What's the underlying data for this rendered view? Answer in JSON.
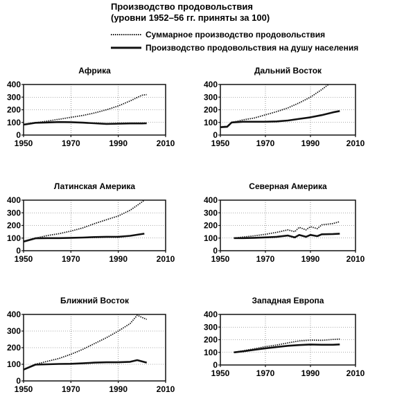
{
  "header": {
    "title_line1": "Производство продовольствия",
    "title_line2": "(уровни 1952–56 гг. приняты за 100)"
  },
  "legend": {
    "placement": "top-right",
    "items": [
      {
        "label": "Суммарное производство продовольствия",
        "style": "dotted"
      },
      {
        "label": "Производство продовольствия на душу населения",
        "style": "solid"
      }
    ]
  },
  "chart_data": [
    {
      "type": "line",
      "title": "Африка",
      "xlim": [
        1950,
        2010
      ],
      "ylim": [
        0,
        400
      ],
      "xticks": [
        1950,
        1970,
        1990,
        2010
      ],
      "yticks": [
        0,
        100,
        200,
        300,
        400
      ],
      "grid": true,
      "series": [
        {
          "label_ref": 0,
          "points": [
            [
              1950,
              85
            ],
            [
              1955,
              97
            ],
            [
              1960,
              110
            ],
            [
              1965,
              125
            ],
            [
              1970,
              140
            ],
            [
              1975,
              155
            ],
            [
              1980,
              175
            ],
            [
              1985,
              200
            ],
            [
              1990,
              230
            ],
            [
              1995,
              270
            ],
            [
              2000,
              315
            ],
            [
              2002,
              320
            ]
          ]
        },
        {
          "label_ref": 1,
          "points": [
            [
              1950,
              82
            ],
            [
              1955,
              97
            ],
            [
              1960,
              100
            ],
            [
              1965,
              103
            ],
            [
              1970,
              102
            ],
            [
              1975,
              98
            ],
            [
              1980,
              93
            ],
            [
              1985,
              88
            ],
            [
              1990,
              90
            ],
            [
              1995,
              92
            ],
            [
              2000,
              92
            ],
            [
              2002,
              93
            ]
          ]
        }
      ]
    },
    {
      "type": "line",
      "title": "Дальний Восток",
      "xlim": [
        1950,
        2010
      ],
      "ylim": [
        0,
        400
      ],
      "xticks": [
        1950,
        1970,
        1990,
        2010
      ],
      "yticks": [
        0,
        100,
        200,
        300,
        400
      ],
      "grid": true,
      "series": [
        {
          "label_ref": 0,
          "points": [
            [
              1950,
              65
            ],
            [
              1953,
              70
            ],
            [
              1955,
              100
            ],
            [
              1960,
              120
            ],
            [
              1965,
              135
            ],
            [
              1970,
              160
            ],
            [
              1975,
              185
            ],
            [
              1980,
              215
            ],
            [
              1985,
              255
            ],
            [
              1990,
              300
            ],
            [
              1995,
              360
            ],
            [
              1998,
              400
            ]
          ]
        },
        {
          "label_ref": 1,
          "points": [
            [
              1950,
              62
            ],
            [
              1953,
              65
            ],
            [
              1955,
              100
            ],
            [
              1960,
              105
            ],
            [
              1965,
              105
            ],
            [
              1970,
              105
            ],
            [
              1975,
              108
            ],
            [
              1980,
              115
            ],
            [
              1985,
              128
            ],
            [
              1990,
              140
            ],
            [
              1995,
              158
            ],
            [
              2000,
              180
            ],
            [
              2003,
              190
            ]
          ]
        }
      ]
    },
    {
      "type": "line",
      "title": "Латинская Америка",
      "xlim": [
        1950,
        2010
      ],
      "ylim": [
        0,
        400
      ],
      "xticks": [
        1950,
        1970,
        1990,
        2010
      ],
      "yticks": [
        0,
        100,
        200,
        300,
        400
      ],
      "grid": true,
      "series": [
        {
          "label_ref": 0,
          "points": [
            [
              1950,
              75
            ],
            [
              1955,
              100
            ],
            [
              1960,
              120
            ],
            [
              1965,
              135
            ],
            [
              1970,
              155
            ],
            [
              1975,
              180
            ],
            [
              1980,
              215
            ],
            [
              1985,
              245
            ],
            [
              1990,
              275
            ],
            [
              1995,
              320
            ],
            [
              2000,
              385
            ],
            [
              2001,
              400
            ]
          ]
        },
        {
          "label_ref": 1,
          "points": [
            [
              1950,
              72
            ],
            [
              1955,
              98
            ],
            [
              1960,
              100
            ],
            [
              1965,
              100
            ],
            [
              1970,
              102
            ],
            [
              1975,
              104
            ],
            [
              1980,
              108
            ],
            [
              1985,
              110
            ],
            [
              1990,
              110
            ],
            [
              1995,
              118
            ],
            [
              2000,
              132
            ],
            [
              2001,
              135
            ]
          ]
        }
      ]
    },
    {
      "type": "line",
      "title": "Северная Америка",
      "xlim": [
        1950,
        2010
      ],
      "ylim": [
        0,
        400
      ],
      "xticks": [
        1950,
        1970,
        1990,
        2010
      ],
      "yticks": [
        0,
        100,
        200,
        300,
        400
      ],
      "grid": true,
      "series": [
        {
          "label_ref": 0,
          "points": [
            [
              1956,
              100
            ],
            [
              1960,
              108
            ],
            [
              1965,
              118
            ],
            [
              1970,
              130
            ],
            [
              1975,
              145
            ],
            [
              1980,
              165
            ],
            [
              1983,
              150
            ],
            [
              1985,
              185
            ],
            [
              1988,
              165
            ],
            [
              1990,
              190
            ],
            [
              1993,
              175
            ],
            [
              1995,
              205
            ],
            [
              2000,
              215
            ],
            [
              2003,
              230
            ]
          ]
        },
        {
          "label_ref": 1,
          "points": [
            [
              1956,
              100
            ],
            [
              1960,
              100
            ],
            [
              1965,
              102
            ],
            [
              1970,
              105
            ],
            [
              1975,
              110
            ],
            [
              1980,
              120
            ],
            [
              1983,
              105
            ],
            [
              1985,
              125
            ],
            [
              1988,
              110
            ],
            [
              1990,
              125
            ],
            [
              1993,
              115
            ],
            [
              1995,
              130
            ],
            [
              2000,
              132
            ],
            [
              2003,
              135
            ]
          ]
        }
      ]
    },
    {
      "type": "line",
      "title": "Ближний Восток",
      "xlim": [
        1950,
        2010
      ],
      "ylim": [
        0,
        400
      ],
      "xticks": [
        1950,
        1970,
        1990,
        2010
      ],
      "yticks": [
        0,
        100,
        200,
        300,
        400
      ],
      "grid": true,
      "series": [
        {
          "label_ref": 0,
          "points": [
            [
              1950,
              70
            ],
            [
              1955,
              100
            ],
            [
              1960,
              118
            ],
            [
              1965,
              135
            ],
            [
              1970,
              160
            ],
            [
              1975,
              190
            ],
            [
              1980,
              225
            ],
            [
              1985,
              260
            ],
            [
              1990,
              300
            ],
            [
              1995,
              345
            ],
            [
              1998,
              395
            ],
            [
              2002,
              370
            ]
          ]
        },
        {
          "label_ref": 1,
          "points": [
            [
              1950,
              68
            ],
            [
              1955,
              98
            ],
            [
              1960,
              100
            ],
            [
              1965,
              102
            ],
            [
              1970,
              103
            ],
            [
              1975,
              106
            ],
            [
              1980,
              110
            ],
            [
              1985,
              112
            ],
            [
              1990,
              112
            ],
            [
              1995,
              115
            ],
            [
              1998,
              125
            ],
            [
              2002,
              110
            ]
          ]
        }
      ]
    },
    {
      "type": "line",
      "title": "Западная Европа",
      "xlim": [
        1950,
        2010
      ],
      "ylim": [
        0,
        400
      ],
      "xticks": [
        1950,
        1970,
        1990,
        2010
      ],
      "yticks": [
        0,
        100,
        200,
        300,
        400
      ],
      "grid": true,
      "series": [
        {
          "label_ref": 0,
          "points": [
            [
              1956,
              100
            ],
            [
              1960,
              112
            ],
            [
              1965,
              128
            ],
            [
              1970,
              145
            ],
            [
              1975,
              158
            ],
            [
              1980,
              175
            ],
            [
              1985,
              190
            ],
            [
              1990,
              197
            ],
            [
              1995,
              195
            ],
            [
              2000,
              202
            ],
            [
              2003,
              205
            ]
          ]
        },
        {
          "label_ref": 1,
          "points": [
            [
              1956,
              100
            ],
            [
              1960,
              108
            ],
            [
              1965,
              120
            ],
            [
              1970,
              132
            ],
            [
              1975,
              142
            ],
            [
              1980,
              152
            ],
            [
              1985,
              158
            ],
            [
              1990,
              162
            ],
            [
              1995,
              160
            ],
            [
              2000,
              160
            ],
            [
              2003,
              163
            ]
          ]
        }
      ]
    }
  ]
}
